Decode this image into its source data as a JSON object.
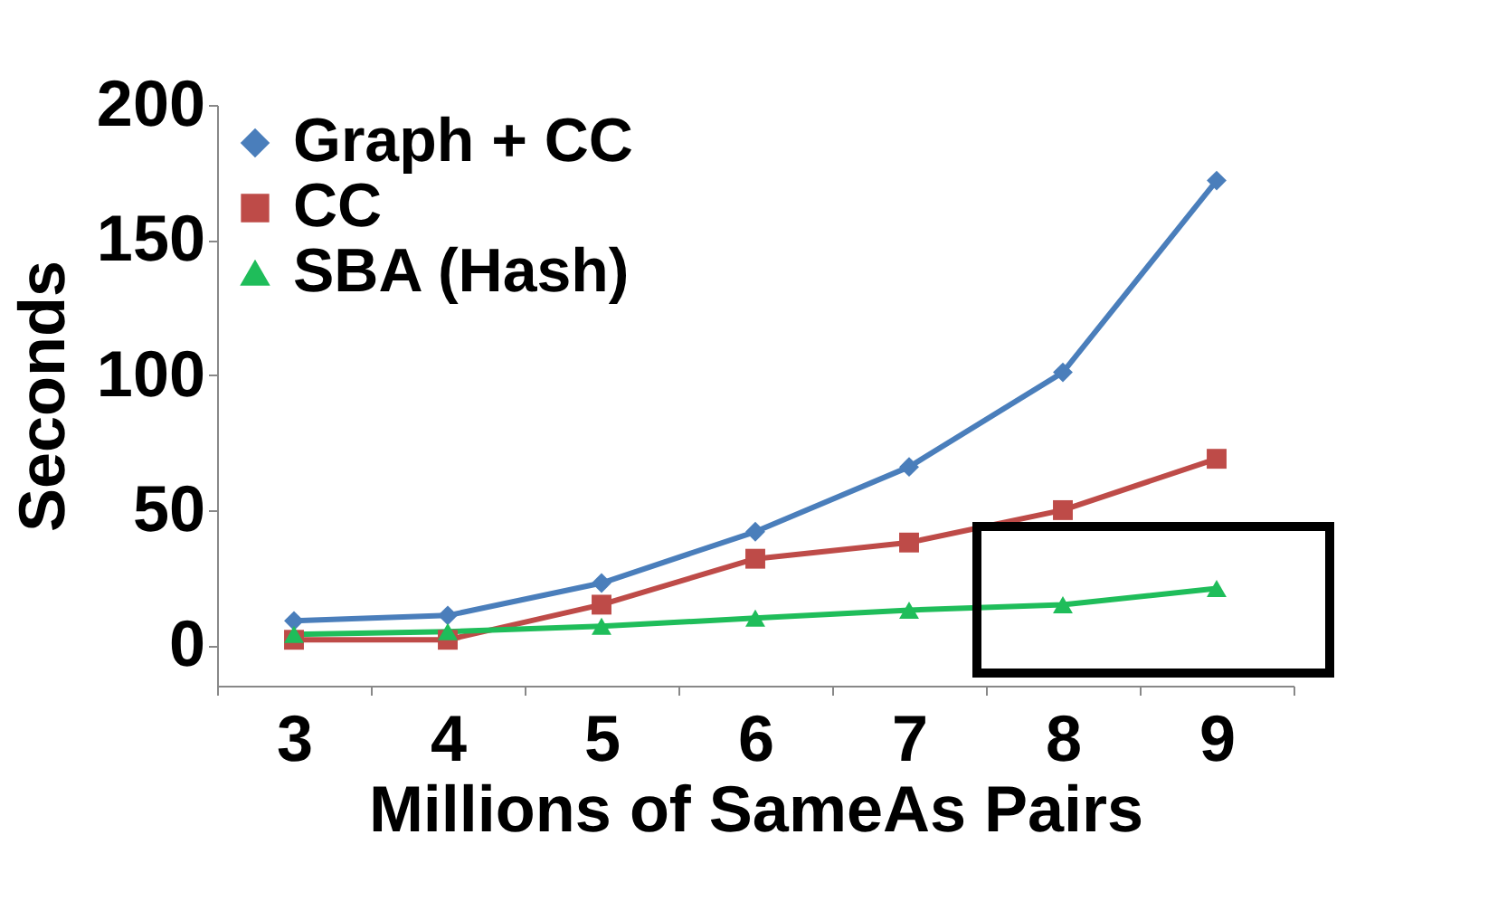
{
  "chart_data": {
    "type": "line",
    "xlabel": "Millions of SameAs Pairs",
    "ylabel": "Seconds",
    "categories": [
      "3",
      "4",
      "5",
      "6",
      "7",
      "8",
      "9"
    ],
    "series": [
      {
        "name": "Graph + CC",
        "color": "#4a7ebb",
        "marker": "diamond",
        "values": [
          9,
          11,
          23,
          42,
          66,
          101,
          172
        ]
      },
      {
        "name": "CC",
        "color": "#be4b48",
        "marker": "square",
        "values": [
          2,
          2,
          15,
          32,
          38,
          50,
          69
        ]
      },
      {
        "name": "SBA (Hash)",
        "color": "#1fbd5a",
        "marker": "triangle",
        "values": [
          4,
          5,
          7,
          10,
          13,
          15,
          21
        ]
      }
    ],
    "ylim": [
      -15,
      200
    ],
    "yticks": [
      0,
      50,
      100,
      150,
      200
    ],
    "grid": false,
    "legend": "top left"
  }
}
